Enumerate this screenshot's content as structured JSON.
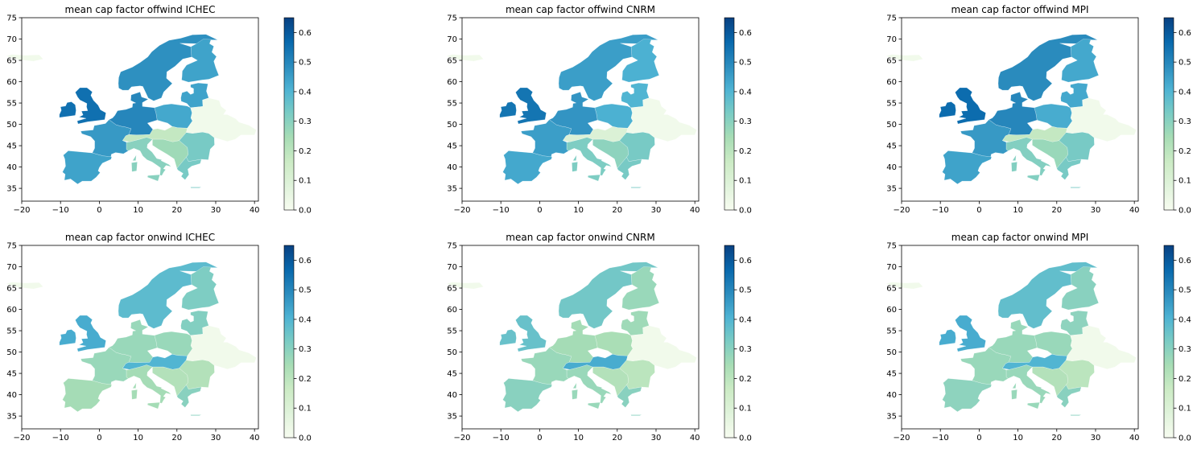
{
  "figure": {
    "panels": [
      {
        "title": "mean cap factor offwind ICHEC",
        "tech": "offwind",
        "model": "ICHEC"
      },
      {
        "title": "mean cap factor offwind CNRM",
        "tech": "offwind",
        "model": "CNRM"
      },
      {
        "title": "mean cap factor offwind MPI",
        "tech": "offwind",
        "model": "MPI"
      },
      {
        "title": "mean cap factor onwind ICHEC",
        "tech": "onwind",
        "model": "ICHEC"
      },
      {
        "title": "mean cap factor onwind CNRM",
        "tech": "onwind",
        "model": "CNRM"
      },
      {
        "title": "mean cap factor onwind MPI",
        "tech": "onwind",
        "model": "MPI"
      }
    ],
    "x_ticks": [
      "−20",
      "−10",
      "0",
      "10",
      "20",
      "30",
      "40"
    ],
    "y_ticks": [
      "35",
      "40",
      "45",
      "50",
      "55",
      "60",
      "65",
      "70",
      "75"
    ],
    "colorbar_ticks": [
      "0.0",
      "0.1",
      "0.2",
      "0.3",
      "0.4",
      "0.5",
      "0.6"
    ],
    "colormap": {
      "name": "GnBu",
      "range": [
        0,
        0.65
      ],
      "stops": [
        "#f7fcf0",
        "#e0f3db",
        "#ccebc5",
        "#a8ddb5",
        "#7bccc4",
        "#4eb3d3",
        "#2b8cbe",
        "#0868ac",
        "#084081"
      ]
    }
  },
  "chart_data": {
    "type": "map",
    "projection": "lon/lat (plate carree)",
    "xlim": [
      -20,
      41
    ],
    "ylim": [
      32,
      75
    ],
    "colorbar_range": [
      0,
      0.65
    ],
    "regions": [
      "UK_IE",
      "Scandinavia",
      "Finland",
      "Baltics",
      "Poland",
      "Germany_Benelux",
      "France",
      "Iberia",
      "Italy",
      "Alps",
      "Balkans",
      "Romania",
      "Greece",
      "Eastern",
      "Iceland"
    ],
    "panels": [
      {
        "title": "mean cap factor offwind ICHEC",
        "values": {
          "UK_IE": 0.55,
          "Scandinavia": 0.48,
          "Finland": 0.44,
          "Baltics": 0.44,
          "Poland": 0.43,
          "Germany_Benelux": 0.5,
          "France": 0.46,
          "Iberia": 0.44,
          "Italy": 0.3,
          "Alps": 0.18,
          "Balkans": 0.26,
          "Romania": 0.33,
          "Greece": 0.33,
          "Eastern": 0.02,
          "Iceland": 0.02
        }
      },
      {
        "title": "mean cap factor offwind CNRM",
        "values": {
          "UK_IE": 0.54,
          "Scandinavia": 0.45,
          "Finland": 0.41,
          "Baltics": 0.4,
          "Poland": 0.41,
          "Germany_Benelux": 0.47,
          "France": 0.45,
          "Iberia": 0.43,
          "Italy": 0.32,
          "Alps": 0.1,
          "Balkans": 0.29,
          "Romania": 0.33,
          "Greece": 0.33,
          "Eastern": 0.02,
          "Iceland": 0.02
        }
      },
      {
        "title": "mean cap factor offwind MPI",
        "values": {
          "UK_IE": 0.56,
          "Scandinavia": 0.49,
          "Finland": 0.43,
          "Baltics": 0.43,
          "Poland": 0.42,
          "Germany_Benelux": 0.5,
          "France": 0.46,
          "Iberia": 0.44,
          "Italy": 0.31,
          "Alps": 0.18,
          "Balkans": 0.27,
          "Romania": 0.33,
          "Greece": 0.33,
          "Eastern": 0.02,
          "Iceland": 0.02
        }
      },
      {
        "title": "mean cap factor onwind ICHEC",
        "values": {
          "UK_IE": 0.42,
          "Scandinavia": 0.38,
          "Finland": 0.32,
          "Baltics": 0.31,
          "Poland": 0.27,
          "Germany_Benelux": 0.27,
          "France": 0.27,
          "Iberia": 0.25,
          "Italy": 0.25,
          "Alps": 0.4,
          "Balkans": 0.22,
          "Romania": 0.22,
          "Greece": 0.3,
          "Eastern": 0.02,
          "Iceland": 0.02
        }
      },
      {
        "title": "mean cap factor onwind CNRM",
        "values": {
          "UK_IE": 0.36,
          "Scandinavia": 0.34,
          "Finland": 0.27,
          "Baltics": 0.26,
          "Poland": 0.24,
          "Germany_Benelux": 0.25,
          "France": 0.27,
          "Iberia": 0.3,
          "Italy": 0.27,
          "Alps": 0.42,
          "Balkans": 0.22,
          "Romania": 0.2,
          "Greece": 0.3,
          "Eastern": 0.02,
          "Iceland": 0.02
        }
      },
      {
        "title": "mean cap factor onwind MPI",
        "values": {
          "UK_IE": 0.42,
          "Scandinavia": 0.37,
          "Finland": 0.3,
          "Baltics": 0.29,
          "Poland": 0.27,
          "Germany_Benelux": 0.27,
          "France": 0.27,
          "Iberia": 0.29,
          "Italy": 0.27,
          "Alps": 0.4,
          "Balkans": 0.22,
          "Romania": 0.2,
          "Greece": 0.3,
          "Eastern": 0.02,
          "Iceland": 0.02
        }
      }
    ]
  }
}
